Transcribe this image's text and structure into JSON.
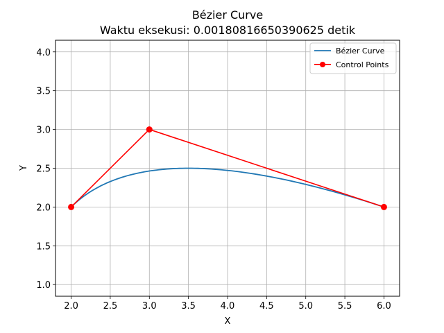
{
  "chart_data": {
    "type": "line",
    "title": "Bézier Curve",
    "subtitle": "Waktu eksekusi: 0.0018081665039062​5 detik",
    "xlabel": "X",
    "ylabel": "Y",
    "xlim": [
      1.8,
      6.2
    ],
    "ylim": [
      0.85,
      4.15
    ],
    "xticks": [
      "2.0",
      "2.5",
      "3.0",
      "3.5",
      "4.0",
      "4.5",
      "5.0",
      "5.5",
      "6.0"
    ],
    "yticks": [
      "1.0",
      "1.5",
      "2.0",
      "2.5",
      "3.0",
      "3.5",
      "4.0"
    ],
    "grid": true,
    "legend_position": "top-right",
    "series": [
      {
        "name": "Bézier Curve",
        "color": "#1f77b4",
        "marker": "none",
        "control_points": [
          [
            2,
            2
          ],
          [
            3,
            3
          ],
          [
            6,
            2
          ]
        ]
      },
      {
        "name": "Control Points",
        "color": "#ff0000",
        "marker": "circle",
        "x": [
          2,
          3,
          6
        ],
        "y": [
          2,
          3,
          2
        ]
      }
    ]
  }
}
